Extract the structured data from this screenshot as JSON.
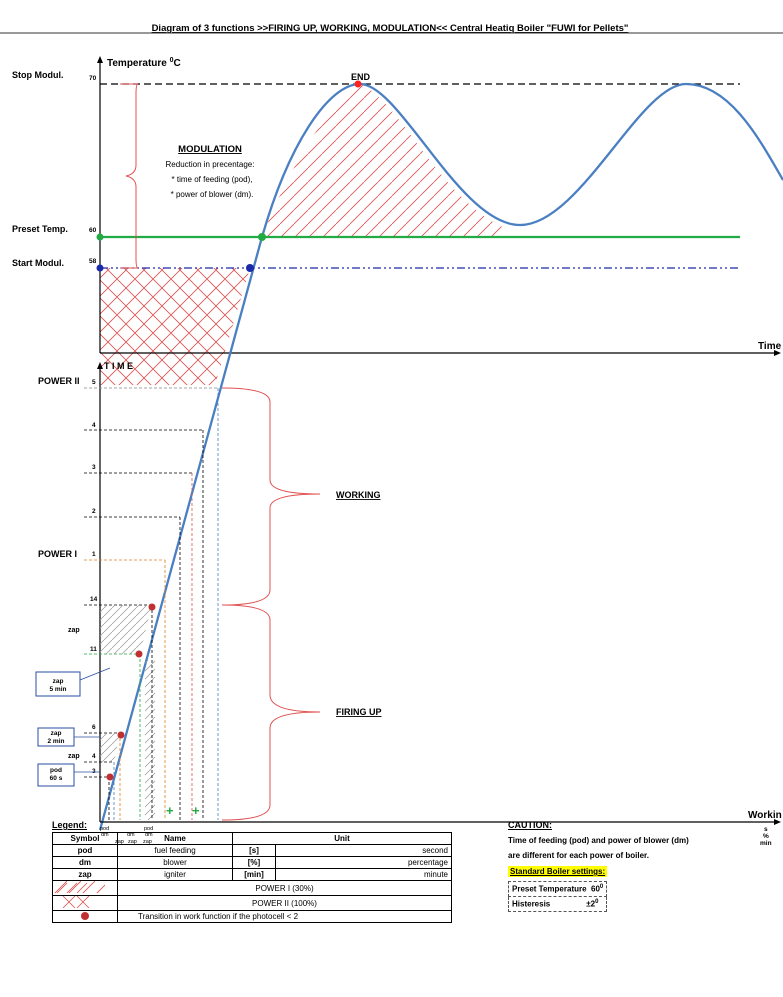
{
  "title": "Diagram of 3 functions  >>FIRING UP, WORKING, MODULATION<<  Central Heatiq Boiler \"FUWI for Pellets\"",
  "top_chart": {
    "y_axis_label": "Temperature",
    "y_axis_unit": "0C",
    "x_axis_label": "Time",
    "levels": [
      {
        "label": "Stop Modul.",
        "value": "70"
      },
      {
        "label": "Preset Temp.",
        "value": "60"
      },
      {
        "label": "Start Modul.",
        "value": "58"
      }
    ],
    "end_label": "END",
    "modulation_title": "MODULATION",
    "modulation_lines": [
      "Reduction in precentage:",
      "* time of feeding (pod),",
      "* power of blower (dm)."
    ]
  },
  "bottom_chart": {
    "y_axis_label": "T I M E",
    "x_axis_label": "Workin",
    "x_axis_unit_lines": [
      "s",
      "%",
      "min"
    ],
    "power2_label": "POWER II",
    "power1_label": "POWER I",
    "ticks": [
      "5",
      "4",
      "3",
      "2",
      "1",
      "14",
      "11",
      "6",
      "4",
      "3"
    ],
    "working_label": "WORKING",
    "firing_label": "FIRING UP",
    "zap_label": "zap",
    "zap_label2": "zap",
    "box1": [
      "zap",
      "5 min"
    ],
    "box2": [
      "zap",
      "2 min"
    ],
    "box3": [
      "pod",
      "60 s"
    ],
    "x_small_top": [
      "pod",
      "dm",
      "dm",
      "pod",
      "dm"
    ],
    "x_small_bottom": [
      "zap",
      "zap",
      "zap"
    ]
  },
  "legend": {
    "title": "Legend:",
    "headers": [
      "Symbol",
      "Name",
      "Unit"
    ],
    "rows": [
      {
        "symbol": "pod",
        "name": "fuel feeding",
        "unit": "[s]",
        "unit_name": "second"
      },
      {
        "symbol": "dm",
        "name": "blower",
        "unit": "[%]",
        "unit_name": "percentage"
      },
      {
        "symbol": "zap",
        "name": "igniter",
        "unit": "[min]",
        "unit_name": "minute"
      }
    ],
    "power1": "POWER  I  (30%)",
    "power2": "POWER II  (100%)",
    "transition": "Transition in work function if the photocell < 2"
  },
  "caution": {
    "title": "CAUTION:",
    "line1": "Time of feeding (pod) and power of blower (dm)",
    "line2": "are different for each power of boiler.",
    "settings_title": "Standard Boiler settings:",
    "preset_label": "Preset Temperature",
    "preset_value": "60",
    "hist_label": "Histeresis",
    "hist_value": "±2"
  },
  "colors": {
    "curve": "#4a7fc1",
    "preset_line": "#22aa44",
    "start_line": "#1a2aa8",
    "hatch": "#e05050",
    "end_marker": "#ff2020"
  }
}
